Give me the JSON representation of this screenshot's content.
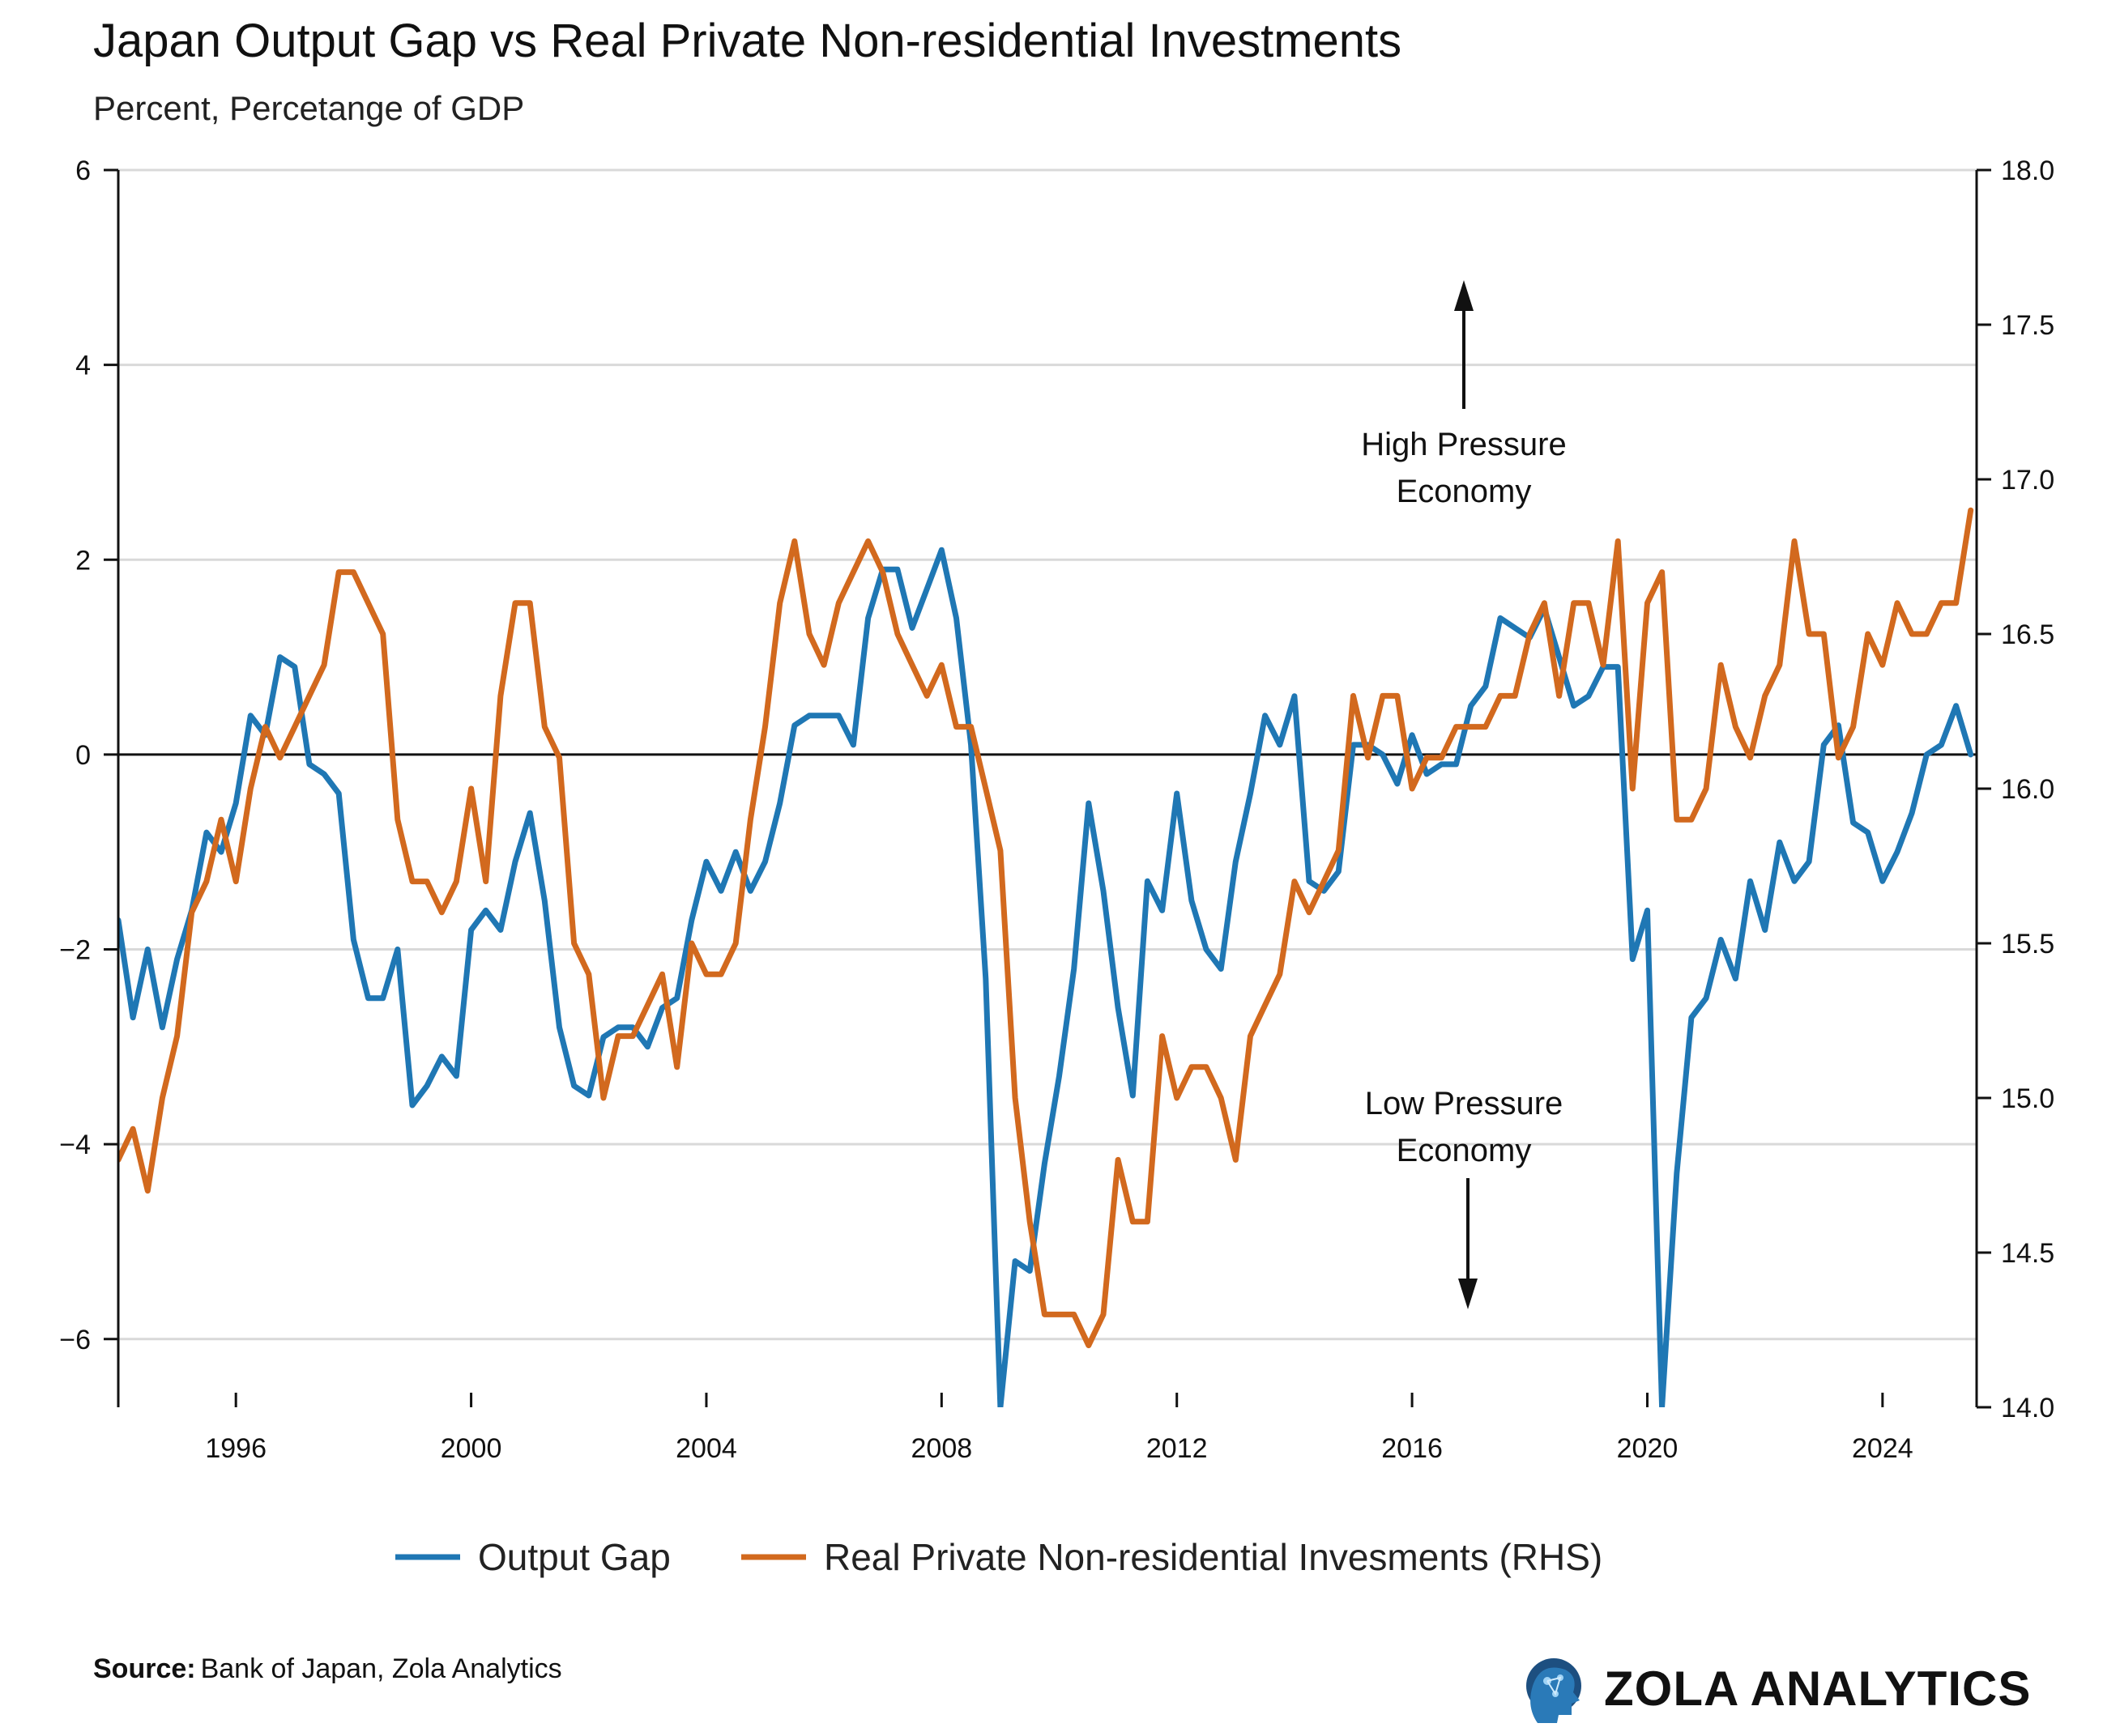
{
  "chart_data": {
    "type": "line",
    "title": "Japan Output Gap vs Real Private Non-residential Investments",
    "subtitle": "Percent, Percetange of GDP",
    "x_range": [
      1994.0,
      2025.6
    ],
    "x_ticks": [
      1996,
      2000,
      2004,
      2008,
      2012,
      2016,
      2020,
      2024
    ],
    "y_left": {
      "range": [
        -6.7,
        6
      ],
      "ticks": [
        6,
        4,
        2,
        0,
        -2,
        -4,
        -6
      ],
      "tick_labels": [
        "6",
        "4",
        "2",
        "0",
        "−2",
        "−4",
        "−6"
      ]
    },
    "y_right": {
      "range": [
        14.0,
        18.0
      ],
      "ticks": [
        18.0,
        17.5,
        17.0,
        16.5,
        16.0,
        15.5,
        15.0,
        14.5,
        14.0
      ],
      "tick_labels": [
        "18.0",
        "17.5",
        "17.0",
        "16.5",
        "16.0",
        "15.5",
        "15.0",
        "14.5",
        "14.0"
      ]
    },
    "gridlines": true,
    "zero_line": true,
    "series": [
      {
        "name": "Output Gap",
        "axis": "left",
        "color": "#1f77b4",
        "x": [
          1994.0,
          1994.25,
          1994.5,
          1994.75,
          1995.0,
          1995.25,
          1995.5,
          1995.75,
          1996.0,
          1996.25,
          1996.5,
          1996.75,
          1997.0,
          1997.25,
          1997.5,
          1997.75,
          1998.0,
          1998.25,
          1998.5,
          1998.75,
          1999.0,
          1999.25,
          1999.5,
          1999.75,
          2000.0,
          2000.25,
          2000.5,
          2000.75,
          2001.0,
          2001.25,
          2001.5,
          2001.75,
          2002.0,
          2002.25,
          2002.5,
          2002.75,
          2003.0,
          2003.25,
          2003.5,
          2003.75,
          2004.0,
          2004.25,
          2004.5,
          2004.75,
          2005.0,
          2005.25,
          2005.5,
          2005.75,
          2006.0,
          2006.25,
          2006.5,
          2006.75,
          2007.0,
          2007.25,
          2007.5,
          2007.75,
          2008.0,
          2008.25,
          2008.5,
          2008.75,
          2009.0,
          2009.25,
          2009.5,
          2009.75,
          2010.0,
          2010.25,
          2010.5,
          2010.75,
          2011.0,
          2011.25,
          2011.5,
          2011.75,
          2012.0,
          2012.25,
          2012.5,
          2012.75,
          2013.0,
          2013.25,
          2013.5,
          2013.75,
          2014.0,
          2014.25,
          2014.5,
          2014.75,
          2015.0,
          2015.25,
          2015.5,
          2015.75,
          2016.0,
          2016.25,
          2016.5,
          2016.75,
          2017.0,
          2017.25,
          2017.5,
          2017.75,
          2018.0,
          2018.25,
          2018.5,
          2018.75,
          2019.0,
          2019.25,
          2019.5,
          2019.75,
          2020.0,
          2020.25,
          2020.5,
          2020.75,
          2021.0,
          2021.25,
          2021.5,
          2021.75,
          2022.0,
          2022.25,
          2022.5,
          2022.75,
          2023.0,
          2023.25,
          2023.5,
          2023.75,
          2024.0,
          2024.25,
          2024.5,
          2024.75,
          2025.0,
          2025.25,
          2025.5
        ],
        "values": [
          -1.7,
          -2.7,
          -2.0,
          -2.8,
          -2.1,
          -1.6,
          -0.8,
          -1.0,
          -0.5,
          0.4,
          0.2,
          1.0,
          0.9,
          -0.1,
          -0.2,
          -0.4,
          -1.9,
          -2.5,
          -2.5,
          -2.0,
          -3.6,
          -3.4,
          -3.1,
          -3.3,
          -1.8,
          -1.6,
          -1.8,
          -1.1,
          -0.6,
          -1.5,
          -2.8,
          -3.4,
          -3.5,
          -2.9,
          -2.8,
          -2.8,
          -3.0,
          -2.6,
          -2.5,
          -1.7,
          -1.1,
          -1.4,
          -1.0,
          -1.4,
          -1.1,
          -0.5,
          0.3,
          0.4,
          0.4,
          0.4,
          0.1,
          1.4,
          1.9,
          1.9,
          1.3,
          1.7,
          2.1,
          1.4,
          0.1,
          -2.3,
          -6.7,
          -5.2,
          -5.3,
          -4.2,
          -3.3,
          -2.2,
          -0.5,
          -1.4,
          -2.6,
          -3.5,
          -1.3,
          -1.6,
          -0.4,
          -1.5,
          -2.0,
          -2.2,
          -1.1,
          -0.4,
          0.4,
          0.1,
          0.6,
          -1.3,
          -1.4,
          -1.2,
          0.1,
          0.1,
          0.0,
          -0.3,
          0.2,
          -0.2,
          -0.1,
          -0.1,
          0.5,
          0.7,
          1.4,
          1.3,
          1.2,
          1.5,
          1.0,
          0.5,
          0.6,
          0.9,
          0.9,
          -2.1,
          -1.6,
          -6.7,
          -4.3,
          -2.7,
          -2.5,
          -1.9,
          -2.3,
          -1.3,
          -1.8,
          -0.9,
          -1.3,
          -1.1,
          0.1,
          0.3,
          -0.7,
          -0.8,
          -1.3,
          -1.0,
          -0.6,
          0.0,
          0.1,
          0.5,
          0.0
        ]
      },
      {
        "name": "Real Private Non-residential Invesments (RHS)",
        "axis": "right",
        "color": "#d2691e",
        "x": [
          1994.0,
          1994.25,
          1994.5,
          1994.75,
          1995.0,
          1995.25,
          1995.5,
          1995.75,
          1996.0,
          1996.25,
          1996.5,
          1996.75,
          1997.0,
          1997.25,
          1997.5,
          1997.75,
          1998.0,
          1998.25,
          1998.5,
          1998.75,
          1999.0,
          1999.25,
          1999.5,
          1999.75,
          2000.0,
          2000.25,
          2000.5,
          2000.75,
          2001.0,
          2001.25,
          2001.5,
          2001.75,
          2002.0,
          2002.25,
          2002.5,
          2002.75,
          2003.0,
          2003.25,
          2003.5,
          2003.75,
          2004.0,
          2004.25,
          2004.5,
          2004.75,
          2005.0,
          2005.25,
          2005.5,
          2005.75,
          2006.0,
          2006.25,
          2006.5,
          2006.75,
          2007.0,
          2007.25,
          2007.5,
          2007.75,
          2008.0,
          2008.25,
          2008.5,
          2008.75,
          2009.0,
          2009.25,
          2009.5,
          2009.75,
          2010.0,
          2010.25,
          2010.5,
          2010.75,
          2011.0,
          2011.25,
          2011.5,
          2011.75,
          2012.0,
          2012.25,
          2012.5,
          2012.75,
          2013.0,
          2013.25,
          2013.5,
          2013.75,
          2014.0,
          2014.25,
          2014.5,
          2014.75,
          2015.0,
          2015.25,
          2015.5,
          2015.75,
          2016.0,
          2016.25,
          2016.5,
          2016.75,
          2017.0,
          2017.25,
          2017.5,
          2017.75,
          2018.0,
          2018.25,
          2018.5,
          2018.75,
          2019.0,
          2019.25,
          2019.5,
          2019.75,
          2020.0,
          2020.25,
          2020.5,
          2020.75,
          2021.0,
          2021.25,
          2021.5,
          2021.75,
          2022.0,
          2022.25,
          2022.5,
          2022.75,
          2023.0,
          2023.25,
          2023.5,
          2023.75,
          2024.0,
          2024.25,
          2024.5,
          2024.75,
          2025.0,
          2025.25,
          2025.5
        ],
        "values": [
          14.8,
          14.9,
          14.7,
          15.0,
          15.2,
          15.6,
          15.7,
          15.9,
          15.7,
          16.0,
          16.2,
          16.1,
          16.2,
          16.3,
          16.4,
          16.7,
          16.7,
          16.6,
          16.5,
          15.9,
          15.7,
          15.7,
          15.6,
          15.7,
          16.0,
          15.7,
          16.3,
          16.6,
          16.6,
          16.2,
          16.1,
          15.5,
          15.4,
          15.0,
          15.2,
          15.2,
          15.3,
          15.4,
          15.1,
          15.5,
          15.4,
          15.4,
          15.5,
          15.9,
          16.2,
          16.6,
          16.8,
          16.5,
          16.4,
          16.6,
          16.7,
          16.8,
          16.7,
          16.5,
          16.4,
          16.3,
          16.4,
          16.2,
          16.2,
          16.0,
          15.8,
          15.0,
          14.6,
          14.3,
          14.3,
          14.3,
          14.2,
          14.3,
          14.8,
          14.6,
          14.6,
          15.2,
          15.0,
          15.1,
          15.1,
          15.0,
          14.8,
          15.2,
          15.3,
          15.4,
          15.7,
          15.6,
          15.7,
          15.8,
          16.3,
          16.1,
          16.3,
          16.3,
          16.0,
          16.1,
          16.1,
          16.2,
          16.2,
          16.2,
          16.3,
          16.3,
          16.5,
          16.6,
          16.3,
          16.6,
          16.6,
          16.4,
          16.8,
          16.0,
          16.6,
          16.7,
          15.9,
          15.9,
          16.0,
          16.4,
          16.2,
          16.1,
          16.3,
          16.4,
          16.8,
          16.5,
          16.5,
          16.1,
          16.2,
          16.5,
          16.4,
          16.6,
          16.5,
          16.5,
          16.6,
          16.6,
          16.9
        ]
      }
    ],
    "annotations": [
      {
        "text_lines": [
          "High Pressure",
          "Economy"
        ],
        "arrow": "up"
      },
      {
        "text_lines": [
          "Low Pressure",
          "Economy"
        ],
        "arrow": "down"
      }
    ],
    "legend": [
      "Output Gap",
      "Real Private Non-residential Invesments (RHS)"
    ],
    "legend_position": "bottom"
  },
  "footer": {
    "source_label": "Source:",
    "source_text": "Bank of Japan, Zola Analytics",
    "brand": "ZOLA ANALYTICS"
  }
}
